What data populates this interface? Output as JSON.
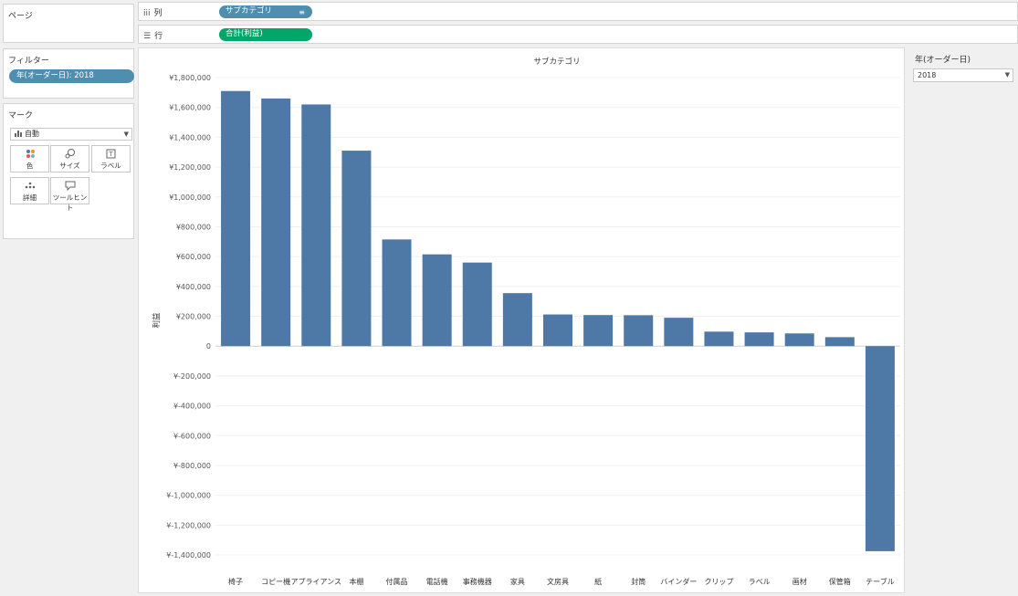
{
  "pages": {
    "title": "ページ"
  },
  "filters": {
    "title": "フィルター",
    "pill": "年(オーダー日): 2018"
  },
  "marks": {
    "title": "マーク",
    "type": "自動",
    "buttons": [
      {
        "label": "色",
        "icon": "color-dots-icon"
      },
      {
        "label": "サイズ",
        "icon": "size-icon"
      },
      {
        "label": "ラベル",
        "icon": "label-icon"
      },
      {
        "label": "詳細",
        "icon": "detail-icon"
      },
      {
        "label": "ツールヒント",
        "icon": "tooltip-icon"
      }
    ]
  },
  "shelves": {
    "columns": {
      "label": "列",
      "pill": "サブカテゴリ",
      "color": "#4f8eaf"
    },
    "rows": {
      "label": "行",
      "pill": "合計(利益)",
      "color": "#00a66a"
    }
  },
  "year_filter": {
    "title": "年(オーダー日)",
    "value": "2018"
  },
  "colors": {
    "bar": "#4e79a7"
  },
  "chart_data": {
    "type": "bar",
    "title": "サブカテゴリ",
    "ylabel": "利益",
    "xlabel": "",
    "categories": [
      "椅子",
      "コピー機",
      "アプライアンス",
      "本棚",
      "付属品",
      "電話機",
      "事務機器",
      "家具",
      "文房具",
      "紙",
      "封筒",
      "バインダー",
      "クリップ",
      "ラベル",
      "画材",
      "保管箱",
      "テーブル"
    ],
    "values": [
      1710000,
      1660000,
      1620000,
      1310000,
      715000,
      615000,
      560000,
      355000,
      212000,
      208000,
      207000,
      190000,
      97000,
      92000,
      85000,
      60000,
      -1375000
    ],
    "ylim": [
      -1400000,
      1800000
    ],
    "yticks": [
      1800000,
      1600000,
      1400000,
      1200000,
      1000000,
      800000,
      600000,
      400000,
      200000,
      0,
      -200000,
      -400000,
      -600000,
      -800000,
      -1000000,
      -1200000,
      -1400000
    ],
    "ytick_labels": [
      "¥1,800,000",
      "¥1,600,000",
      "¥1,400,000",
      "¥1,200,000",
      "¥1,000,000",
      "¥800,000",
      "¥600,000",
      "¥400,000",
      "¥200,000",
      "0",
      "¥-200,000",
      "¥-400,000",
      "¥-600,000",
      "¥-800,000",
      "¥-1,000,000",
      "¥-1,200,000",
      "¥-1,400,000"
    ],
    "grid": true
  }
}
